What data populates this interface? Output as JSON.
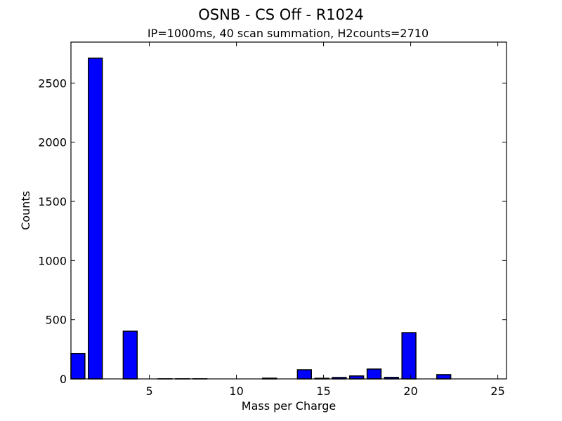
{
  "chart_data": {
    "type": "bar",
    "title": "OSNB - CS Off - R1024",
    "subtitle": "IP=1000ms, 40 scan summation, H2counts=2710",
    "xlabel": "Mass per Charge",
    "ylabel": "Counts",
    "xlim": [
      0.5,
      25.5
    ],
    "ylim": [
      0,
      2846
    ],
    "xticks": [
      5,
      10,
      15,
      20,
      25
    ],
    "yticks": [
      0,
      500,
      1000,
      1500,
      2000,
      2500
    ],
    "grid": false,
    "legend": null,
    "bar_color": "#0000ff",
    "bar_edge_color": "#000000",
    "bar_width": 0.8,
    "bar_offset": -0.5,
    "x": [
      1,
      2,
      3,
      4,
      5,
      6,
      7,
      8,
      9,
      10,
      11,
      12,
      13,
      14,
      15,
      16,
      17,
      18,
      19,
      20,
      21,
      22,
      23,
      24,
      25
    ],
    "values": [
      215,
      2710,
      0,
      403,
      0,
      1,
      1,
      1,
      0,
      0,
      0,
      6,
      0,
      77,
      5,
      12,
      25,
      83,
      13,
      391,
      0,
      36,
      0,
      0,
      0
    ]
  }
}
